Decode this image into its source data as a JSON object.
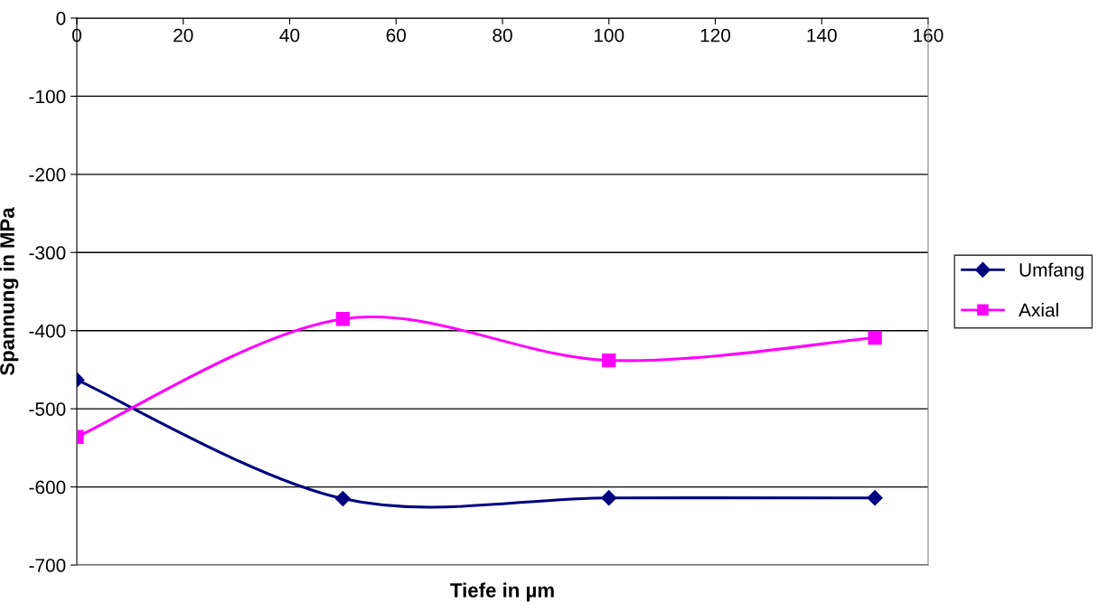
{
  "chart_data": {
    "type": "line",
    "xlabel": "Tiefe in µm",
    "ylabel": "Spannung in MPa",
    "x": [
      0,
      50,
      100,
      150
    ],
    "series": [
      {
        "name": "Umfang",
        "color": "#000080",
        "marker": "diamond",
        "values": [
          -463,
          -615,
          -614,
          -614
        ]
      },
      {
        "name": "Axial",
        "color": "#ff00ff",
        "marker": "square",
        "values": [
          -536,
          -385,
          -438,
          -409
        ]
      }
    ],
    "xlim": [
      0,
      160
    ],
    "xticks": [
      0,
      20,
      40,
      60,
      80,
      100,
      120,
      140,
      160
    ],
    "ylim": [
      -700,
      0
    ],
    "yticks": [
      -700,
      -600,
      -500,
      -400,
      -300,
      -200,
      -100,
      0
    ],
    "grid": "y",
    "legend": "right",
    "line_style": "solid"
  }
}
